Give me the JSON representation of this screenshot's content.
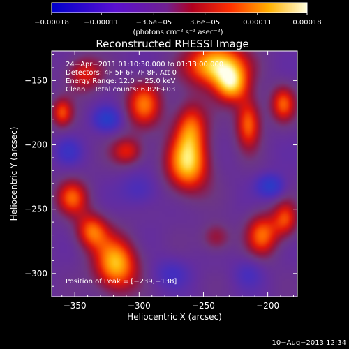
{
  "chart_data": {
    "type": "heatmap",
    "title": "Reconstructed RHESSI Image",
    "xlabel": "Heliocentric X (arcsec)",
    "ylabel": "Heliocentric Y (arcsec)",
    "xlim": [
      -368,
      -177
    ],
    "ylim": [
      -318,
      -127
    ],
    "x_ticks": [
      -350,
      -300,
      -250,
      -200
    ],
    "y_ticks": [
      -150,
      -200,
      -250,
      -300
    ],
    "x_tick_labels": [
      "−350",
      "−300",
      "−250",
      "−200"
    ],
    "y_tick_labels": [
      "−150",
      "−200",
      "−250",
      "−300"
    ],
    "colorbar": {
      "range": [
        -0.00018,
        0.00018
      ],
      "ticks": [
        -0.00018,
        -0.00011,
        -3.6e-05,
        3.6e-05,
        0.00011,
        0.00018
      ],
      "tick_labels": [
        "−0.00018",
        "−0.00011",
        "−3.6e−05",
        "3.6e−05",
        "0.00011",
        "0.00018"
      ],
      "unit_label": "(photons cm⁻² s⁻¹ asec⁻²)",
      "colormap": [
        "#000000",
        "#0000ff",
        "#800080",
        "#ff0000",
        "#ff8000",
        "#ffff00",
        "#ffffff"
      ]
    },
    "annotations": [
      "24−Apr−2011 01:10:30.000 to 01:13:00.000",
      "Detectors: 4F 5F 6F 7F 8F, Att 0",
      "Energy Range: 12.0 − 25.0 keV",
      "Clean    Total counts: 6.82E+03"
    ],
    "peak_label": "Position of Peak = [−239,−138]",
    "sources": [
      {
        "x": -240,
        "y": -138,
        "value": 1.0,
        "sx": 16,
        "sy": 12
      },
      {
        "x": -228,
        "y": -154,
        "value": 0.65,
        "sx": 9,
        "sy": 10
      },
      {
        "x": -262,
        "y": -215,
        "value": 0.85,
        "sx": 12,
        "sy": 16
      },
      {
        "x": -260,
        "y": -185,
        "value": 0.55,
        "sx": 9,
        "sy": 14
      },
      {
        "x": -318,
        "y": -293,
        "value": 0.85,
        "sx": 12,
        "sy": 15
      },
      {
        "x": -337,
        "y": -267,
        "value": 0.6,
        "sx": 9,
        "sy": 10
      },
      {
        "x": -352,
        "y": -241,
        "value": 0.55,
        "sx": 9,
        "sy": 10
      },
      {
        "x": -296,
        "y": -168,
        "value": 0.6,
        "sx": 10,
        "sy": 13
      },
      {
        "x": -309,
        "y": -205,
        "value": 0.45,
        "sx": 9,
        "sy": 8
      },
      {
        "x": -343,
        "y": -145,
        "value": 0.45,
        "sx": 10,
        "sy": 10
      },
      {
        "x": -360,
        "y": -175,
        "value": 0.5,
        "sx": 6,
        "sy": 8
      },
      {
        "x": -215,
        "y": -183,
        "value": 0.65,
        "sx": 7,
        "sy": 14
      },
      {
        "x": -188,
        "y": -168,
        "value": 0.55,
        "sx": 7,
        "sy": 10
      },
      {
        "x": -204,
        "y": -270,
        "value": 0.6,
        "sx": 9,
        "sy": 12
      },
      {
        "x": -186,
        "y": -258,
        "value": 0.5,
        "sx": 7,
        "sy": 10
      },
      {
        "x": -240,
        "y": -272,
        "value": 0.3,
        "sx": 8,
        "sy": 8
      },
      {
        "x": -325,
        "y": -180,
        "value": -0.75,
        "sx": 7,
        "sy": 6
      },
      {
        "x": -198,
        "y": -232,
        "value": -0.75,
        "sx": 7,
        "sy": 6
      },
      {
        "x": -355,
        "y": -205,
        "value": -0.45,
        "sx": 7,
        "sy": 7
      },
      {
        "x": -300,
        "y": -235,
        "value": -0.35,
        "sx": 10,
        "sy": 9
      },
      {
        "x": -275,
        "y": -300,
        "value": -0.35,
        "sx": 10,
        "sy": 8
      },
      {
        "x": -215,
        "y": -300,
        "value": -0.3,
        "sx": 8,
        "sy": 8
      }
    ],
    "background_value": -0.2
  },
  "footer": {
    "timestamp": "10−Aug−2013 12:34"
  }
}
